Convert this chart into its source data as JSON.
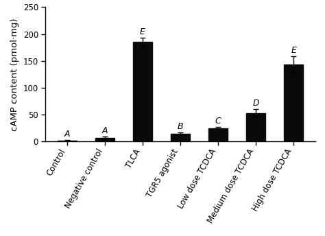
{
  "categories": [
    "Control",
    "Negative control",
    "TLCA",
    "TGR5 agonist",
    "Low dose TCDCA",
    "Medium dose TCDCA",
    "High dose TCDCA"
  ],
  "values": [
    2.0,
    7.0,
    185.0,
    15.0,
    25.0,
    53.0,
    143.0
  ],
  "errors": [
    1.0,
    2.5,
    8.0,
    1.5,
    2.0,
    7.0,
    15.0
  ],
  "letters": [
    "A",
    "A",
    "E",
    "B",
    "C",
    "D",
    "E"
  ],
  "bar_color": "#0a0a0a",
  "ylabel": "cAMP content (pmol·mg)",
  "ylim": [
    0,
    250
  ],
  "yticks": [
    0,
    50,
    100,
    150,
    200,
    250
  ],
  "bar_width": 0.5,
  "letter_fontsize": 9,
  "tick_label_fontsize": 8.5,
  "ylabel_fontsize": 9.5,
  "rotation": 60
}
